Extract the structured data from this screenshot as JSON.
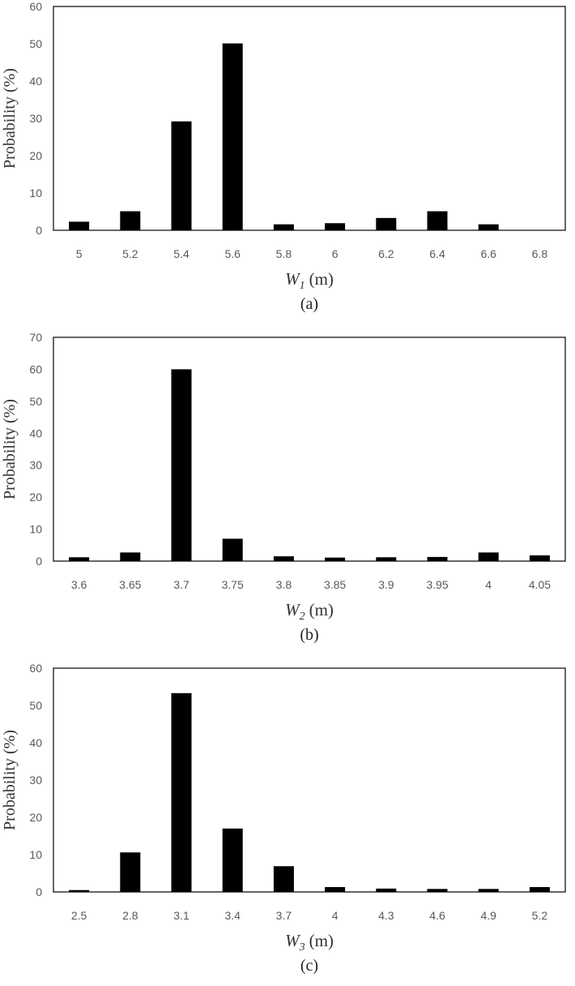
{
  "chart_data": [
    {
      "type": "bar",
      "caption": "(a)",
      "xlabel": {
        "var": "W",
        "sub": "1",
        "unit": "(m)"
      },
      "ylabel": "Probability (%)",
      "ylim": [
        0,
        60
      ],
      "yticks": [
        0,
        10,
        20,
        30,
        40,
        50,
        60
      ],
      "categories": [
        "5",
        "5.2",
        "5.4",
        "5.6",
        "5.8",
        "6",
        "6.2",
        "6.4",
        "6.6",
        "6.8"
      ],
      "values": [
        2.3,
        5.1,
        29.2,
        50.1,
        1.6,
        1.9,
        3.3,
        5.1,
        1.6,
        0.1
      ],
      "color": "#000000",
      "grid": false,
      "legend": false
    },
    {
      "type": "bar",
      "caption": "(b)",
      "xlabel": {
        "var": "W",
        "sub": "2",
        "unit": "(m)"
      },
      "ylabel": "Probability (%)",
      "ylim": [
        0,
        70
      ],
      "yticks": [
        0,
        10,
        20,
        30,
        40,
        50,
        60,
        70
      ],
      "categories": [
        "3.6",
        "3.65",
        "3.7",
        "3.75",
        "3.8",
        "3.85",
        "3.9",
        "3.95",
        "4",
        "4.05"
      ],
      "values": [
        1.2,
        2.7,
        60.0,
        7.0,
        1.5,
        1.1,
        1.2,
        1.3,
        2.7,
        1.8
      ],
      "color": "#000000",
      "grid": false,
      "legend": false
    },
    {
      "type": "bar",
      "caption": "(c)",
      "xlabel": {
        "var": "W",
        "sub": "3",
        "unit": "(m)"
      },
      "ylabel": "Probability (%)",
      "ylim": [
        0,
        60
      ],
      "yticks": [
        0,
        10,
        20,
        30,
        40,
        50,
        60
      ],
      "categories": [
        "2.5",
        "2.8",
        "3.1",
        "3.4",
        "3.7",
        "4",
        "4.3",
        "4.6",
        "4.9",
        "5.2"
      ],
      "values": [
        0.5,
        10.6,
        53.3,
        17.0,
        6.9,
        1.3,
        0.9,
        0.8,
        0.8,
        1.3
      ],
      "color": "#000000",
      "grid": false,
      "legend": false
    }
  ]
}
